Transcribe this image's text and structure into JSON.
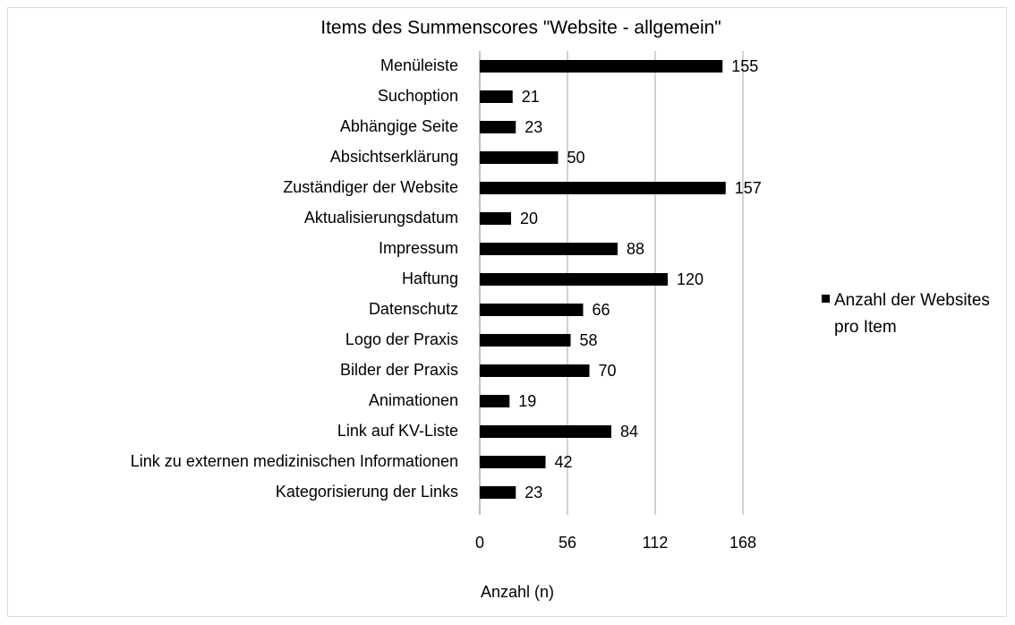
{
  "chart_data": {
    "type": "bar",
    "orientation": "horizontal",
    "title": "Items des Summenscores \"Website - allgemein\"",
    "categories": [
      "Menüleiste",
      "Suchoption",
      "Abhängige Seite",
      "Absichtserklärung",
      "Zuständiger der Website",
      "Aktualisierungsdatum",
      "Impressum",
      "Haftung",
      "Datenschutz",
      "Logo der Praxis",
      "Bilder der Praxis",
      "Animationen",
      "Link auf KV-Liste",
      "Link zu externen medizinischen Informationen",
      "Kategorisierung der Links"
    ],
    "series": [
      {
        "name": "Anzahl der Websites pro Item",
        "color": "#000000",
        "values": [
          155,
          21,
          23,
          50,
          157,
          20,
          88,
          120,
          66,
          58,
          70,
          19,
          84,
          42,
          23
        ]
      }
    ],
    "xlabel": "Anzahl (n)",
    "xlim": [
      0,
      168
    ],
    "xticks": [
      0,
      56,
      112,
      168
    ],
    "grid": true,
    "legend": "right"
  }
}
